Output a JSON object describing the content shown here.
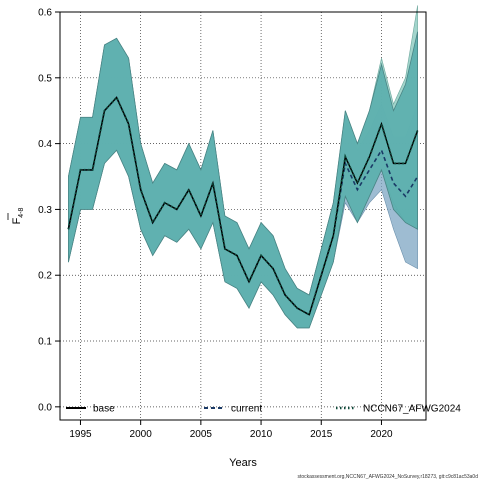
{
  "chart_data": {
    "type": "line",
    "xlabel": "Years",
    "ylabel_main": "F",
    "ylabel_sub": "4-8",
    "xlim": [
      1993.3,
      2023.7
    ],
    "ylim": [
      -0.02,
      0.6
    ],
    "x_ticks": [
      1995,
      2000,
      2005,
      2010,
      2015,
      2020
    ],
    "y_ticks": [
      0.0,
      0.1,
      0.2,
      0.3,
      0.4,
      0.5,
      0.6
    ],
    "y_tick_labels": [
      "0.0",
      "0.1",
      "0.2",
      "0.3",
      "0.4",
      "0.5",
      "0.6"
    ],
    "grid": true,
    "legend_position": "bottom",
    "footnote": "stockassessment.org,NCCN67_AFWG2024_NoSurvey,r18273, git:c9c81ac53a0d",
    "colors": {
      "base_band": "#5aaead",
      "base_band_edge": "#4a8585",
      "current_band": "#7ea6c3",
      "nccn_band": "#92cec3",
      "line": "#000000",
      "current_line": "#1a3a66",
      "nccn_line": "#0f4a3a"
    },
    "series": [
      {
        "name": "base",
        "style": "solid",
        "x": [
          1994,
          1995,
          1996,
          1997,
          1998,
          1999,
          2000,
          2001,
          2002,
          2003,
          2004,
          2005,
          2006,
          2007,
          2008,
          2009,
          2010,
          2011,
          2012,
          2013,
          2014,
          2015,
          2016,
          2017,
          2018,
          2019,
          2020,
          2021,
          2022,
          2023
        ],
        "y": [
          0.27,
          0.36,
          0.36,
          0.45,
          0.47,
          0.43,
          0.33,
          0.28,
          0.31,
          0.3,
          0.33,
          0.29,
          0.34,
          0.24,
          0.23,
          0.19,
          0.23,
          0.21,
          0.17,
          0.15,
          0.14,
          0.2,
          0.26,
          0.38,
          0.34,
          0.38,
          0.43,
          0.37,
          0.37,
          0.42
        ],
        "lower": [
          0.22,
          0.3,
          0.3,
          0.37,
          0.39,
          0.35,
          0.27,
          0.23,
          0.26,
          0.25,
          0.27,
          0.24,
          0.28,
          0.19,
          0.18,
          0.15,
          0.19,
          0.17,
          0.14,
          0.12,
          0.12,
          0.17,
          0.22,
          0.32,
          0.28,
          0.32,
          0.36,
          0.3,
          0.28,
          0.27
        ],
        "upper": [
          0.35,
          0.44,
          0.44,
          0.55,
          0.56,
          0.53,
          0.4,
          0.34,
          0.37,
          0.36,
          0.4,
          0.36,
          0.42,
          0.29,
          0.28,
          0.24,
          0.28,
          0.26,
          0.21,
          0.18,
          0.17,
          0.24,
          0.31,
          0.45,
          0.4,
          0.45,
          0.52,
          0.45,
          0.49,
          0.57
        ]
      },
      {
        "name": "current",
        "style": "dashed",
        "x": [
          1994,
          1995,
          1996,
          1997,
          1998,
          1999,
          2000,
          2001,
          2002,
          2003,
          2004,
          2005,
          2006,
          2007,
          2008,
          2009,
          2010,
          2011,
          2012,
          2013,
          2014,
          2015,
          2016,
          2017,
          2018,
          2019,
          2020,
          2021,
          2022,
          2023
        ],
        "y": [
          0.27,
          0.36,
          0.36,
          0.45,
          0.47,
          0.43,
          0.33,
          0.28,
          0.31,
          0.3,
          0.33,
          0.29,
          0.34,
          0.24,
          0.23,
          0.19,
          0.23,
          0.21,
          0.17,
          0.15,
          0.14,
          0.2,
          0.26,
          0.37,
          0.33,
          0.36,
          0.39,
          0.34,
          0.32,
          0.35
        ],
        "lower": [
          0.22,
          0.3,
          0.3,
          0.37,
          0.39,
          0.35,
          0.27,
          0.23,
          0.26,
          0.25,
          0.27,
          0.24,
          0.28,
          0.19,
          0.18,
          0.15,
          0.19,
          0.17,
          0.14,
          0.12,
          0.12,
          0.17,
          0.22,
          0.31,
          0.28,
          0.31,
          0.33,
          0.27,
          0.22,
          0.21
        ],
        "upper": [
          0.35,
          0.44,
          0.44,
          0.55,
          0.56,
          0.53,
          0.4,
          0.34,
          0.37,
          0.36,
          0.4,
          0.36,
          0.42,
          0.29,
          0.28,
          0.24,
          0.28,
          0.26,
          0.21,
          0.18,
          0.17,
          0.24,
          0.31,
          0.44,
          0.39,
          0.42,
          0.46,
          0.41,
          0.41,
          0.46
        ]
      },
      {
        "name": "NCCN67_AFWG2024",
        "style": "dotted",
        "x": [
          1994,
          1995,
          1996,
          1997,
          1998,
          1999,
          2000,
          2001,
          2002,
          2003,
          2004,
          2005,
          2006,
          2007,
          2008,
          2009,
          2010,
          2011,
          2012,
          2013,
          2014,
          2015,
          2016,
          2017,
          2018,
          2019,
          2020,
          2021,
          2022,
          2023
        ],
        "y": [
          0.27,
          0.36,
          0.36,
          0.45,
          0.47,
          0.43,
          0.33,
          0.28,
          0.31,
          0.3,
          0.33,
          0.29,
          0.34,
          0.24,
          0.23,
          0.19,
          0.23,
          0.21,
          0.17,
          0.15,
          0.14,
          0.2,
          0.26,
          0.38,
          0.34,
          0.38,
          0.43,
          0.37,
          0.37,
          0.42
        ],
        "lower": [
          0.22,
          0.3,
          0.3,
          0.37,
          0.39,
          0.35,
          0.27,
          0.23,
          0.26,
          0.25,
          0.27,
          0.24,
          0.28,
          0.19,
          0.18,
          0.15,
          0.19,
          0.17,
          0.14,
          0.12,
          0.12,
          0.17,
          0.22,
          0.32,
          0.28,
          0.32,
          0.36,
          0.31,
          0.28,
          0.27
        ],
        "upper": [
          0.35,
          0.44,
          0.44,
          0.55,
          0.56,
          0.53,
          0.4,
          0.34,
          0.37,
          0.36,
          0.4,
          0.36,
          0.42,
          0.29,
          0.28,
          0.24,
          0.28,
          0.26,
          0.21,
          0.18,
          0.17,
          0.24,
          0.31,
          0.45,
          0.4,
          0.45,
          0.53,
          0.46,
          0.5,
          0.61
        ]
      }
    ]
  }
}
